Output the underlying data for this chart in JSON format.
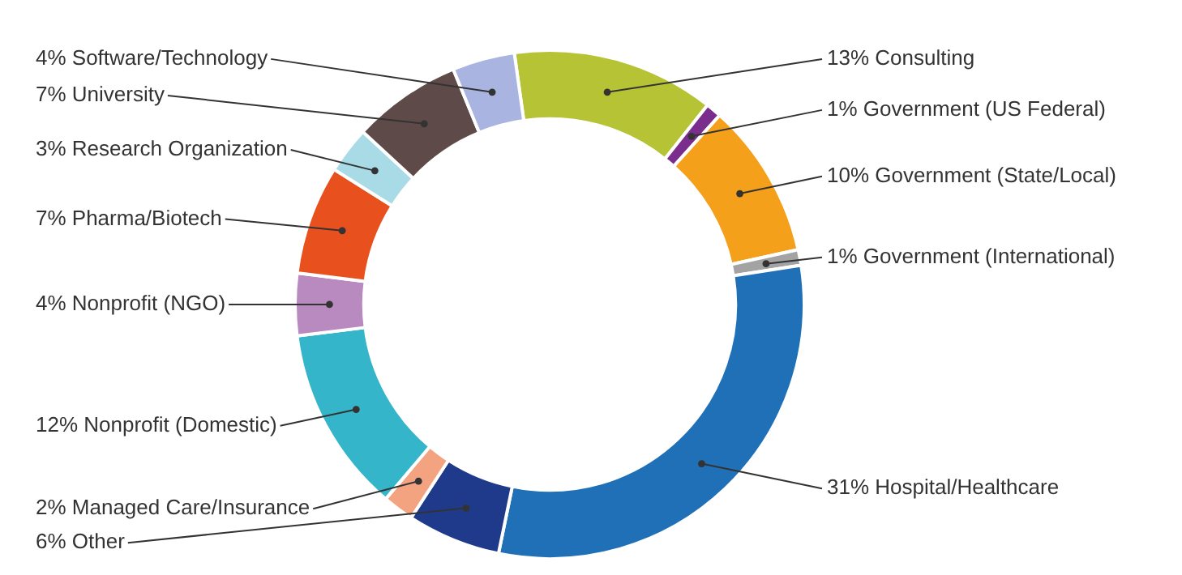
{
  "chart_data": {
    "type": "donut",
    "legend": false,
    "categories": [
      "Consulting",
      "Government (US Federal)",
      "Government (State/Local)",
      "Government (International)",
      "Hospital/Healthcare",
      "Other",
      "Managed Care/Insurance",
      "Nonprofit (Domestic)",
      "Nonprofit (NGO)",
      "Pharma/Biotech",
      "Research Organization",
      "University",
      "Software/Technology"
    ],
    "values": [
      13,
      1,
      10,
      1,
      31,
      6,
      2,
      12,
      4,
      7,
      3,
      7,
      4
    ],
    "value_labels": [
      "13%",
      "1%",
      "10%",
      "1%",
      "31%",
      "6%",
      "2%",
      "12%",
      "4%",
      "7%",
      "3%",
      "7%",
      "4%"
    ],
    "colors": [
      "#b5c334",
      "#7b2d8e",
      "#f5a01a",
      "#a3a3a3",
      "#2070b8",
      "#1f3a8a",
      "#f4a380",
      "#35b5c9",
      "#b88ac0",
      "#e8501e",
      "#a8dbe6",
      "#5e4a48",
      "#a9b4e0"
    ]
  }
}
